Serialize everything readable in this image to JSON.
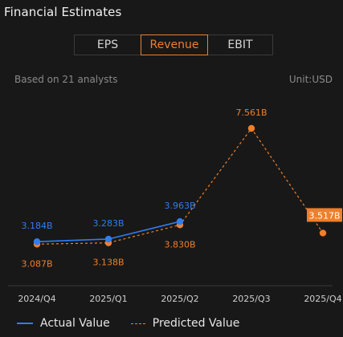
{
  "title": "Financial Estimates",
  "tabs": [
    {
      "label": "EPS",
      "active": false
    },
    {
      "label": "Revenue",
      "active": true
    },
    {
      "label": "EBIT",
      "active": false
    }
  ],
  "meta": {
    "analysts": "Based on 21 analysts",
    "unit": "Unit:USD"
  },
  "colors": {
    "actual": "#2f7df2",
    "predicted": "#f07f2a",
    "highlight_label_bg": "#f07f2a"
  },
  "chart_data": {
    "type": "line",
    "categories": [
      "2024/Q4",
      "2025/Q1",
      "2025/Q2",
      "2025/Q3",
      "2025/Q4"
    ],
    "series": [
      {
        "name": "Actual Value",
        "values": [
          3.184,
          3.283,
          3.963,
          null,
          null
        ],
        "labels": [
          "3.184B",
          "3.283B",
          "3.963B",
          "",
          ""
        ],
        "style": "solid"
      },
      {
        "name": "Predicted Value",
        "values": [
          3.087,
          3.138,
          3.83,
          7.561,
          3.517
        ],
        "labels": [
          "3.087B",
          "3.138B",
          "3.830B",
          "7.561B",
          "3.517B"
        ],
        "style": "dashed"
      }
    ],
    "highlighted_point": {
      "series": "Predicted Value",
      "category": "2025/Q4"
    },
    "xlabel": "",
    "ylabel": "",
    "grid": false,
    "legend_position": "bottom-left"
  }
}
